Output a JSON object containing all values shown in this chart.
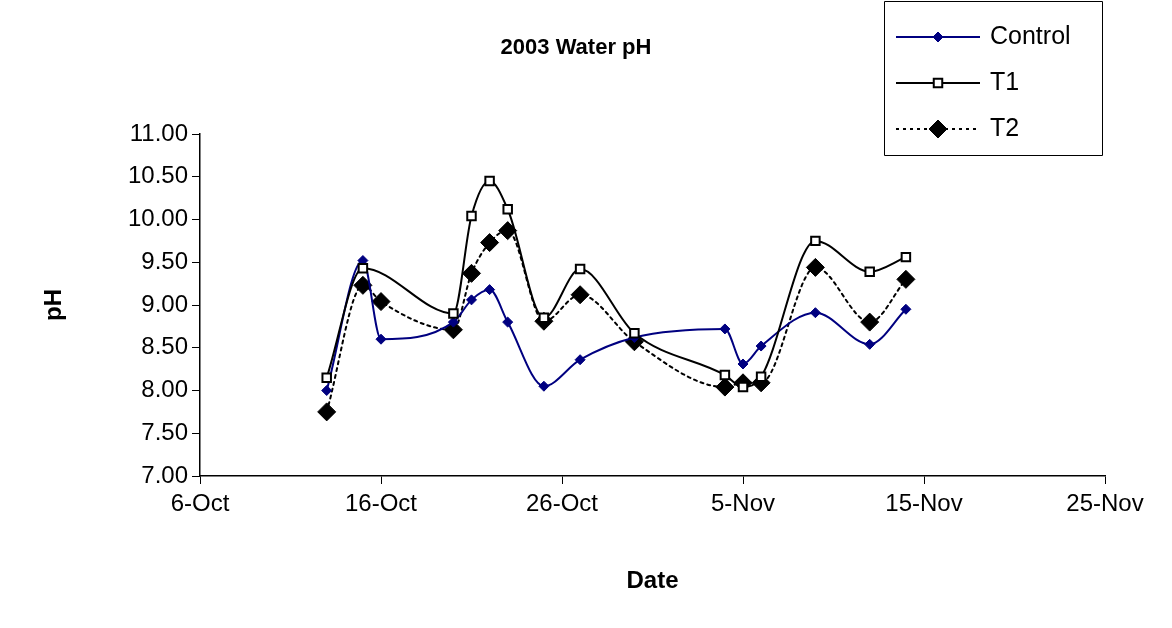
{
  "chart_data": {
    "type": "line",
    "title": "2003 Water pH",
    "xlabel": "Date",
    "ylabel": "pH",
    "x": [
      "2003-10-13",
      "2003-10-15",
      "2003-10-16",
      "2003-10-20",
      "2003-10-21",
      "2003-10-22",
      "2003-10-23",
      "2003-10-25",
      "2003-10-27",
      "2003-10-30",
      "2003-11-04",
      "2003-11-05",
      "2003-11-06",
      "2003-11-09",
      "2003-11-12",
      "2003-11-14"
    ],
    "series": [
      {
        "name": "Control",
        "color": "#000080",
        "marker": "diamond",
        "line_style": "solid",
        "values": [
          8.0,
          9.52,
          8.6,
          8.8,
          9.06,
          9.18,
          8.8,
          8.05,
          8.36,
          8.62,
          8.72,
          8.31,
          8.52,
          8.91,
          8.54,
          8.95
        ]
      },
      {
        "name": "T1",
        "color": "#000000",
        "marker": "square",
        "line_style": "solid",
        "values": [
          8.15,
          9.43,
          null,
          8.9,
          10.04,
          10.45,
          10.12,
          8.85,
          9.42,
          8.67,
          8.18,
          8.04,
          8.16,
          9.75,
          9.39,
          9.56
        ]
      },
      {
        "name": "T2",
        "color": "#000000",
        "marker": "diamond",
        "line_style": "dotted",
        "values": [
          7.75,
          9.23,
          9.04,
          8.71,
          9.37,
          9.73,
          9.87,
          8.81,
          9.12,
          8.57,
          8.04,
          8.09,
          8.09,
          9.44,
          8.8,
          9.3
        ]
      }
    ],
    "xlim": [
      "2003-10-06",
      "2003-11-25"
    ],
    "xticks": [
      {
        "value": "2003-10-06",
        "label": "6-Oct"
      },
      {
        "value": "2003-10-16",
        "label": "16-Oct"
      },
      {
        "value": "2003-10-26",
        "label": "26-Oct"
      },
      {
        "value": "2003-11-05",
        "label": "5-Nov"
      },
      {
        "value": "2003-11-15",
        "label": "15-Nov"
      },
      {
        "value": "2003-11-25",
        "label": "25-Nov"
      }
    ],
    "ylim": [
      7,
      11
    ],
    "yticks": [
      {
        "value": 7,
        "label": "7.00"
      },
      {
        "value": 7.5,
        "label": "7.50"
      },
      {
        "value": 8,
        "label": "8.00"
      },
      {
        "value": 8.5,
        "label": "8.50"
      },
      {
        "value": 9,
        "label": "9.00"
      },
      {
        "value": 9.5,
        "label": "9.50"
      },
      {
        "value": 10,
        "label": "10.00"
      },
      {
        "value": 10.5,
        "label": "10.50"
      },
      {
        "value": 11,
        "label": "11.00"
      }
    ],
    "grid": false,
    "legend": "top right"
  }
}
